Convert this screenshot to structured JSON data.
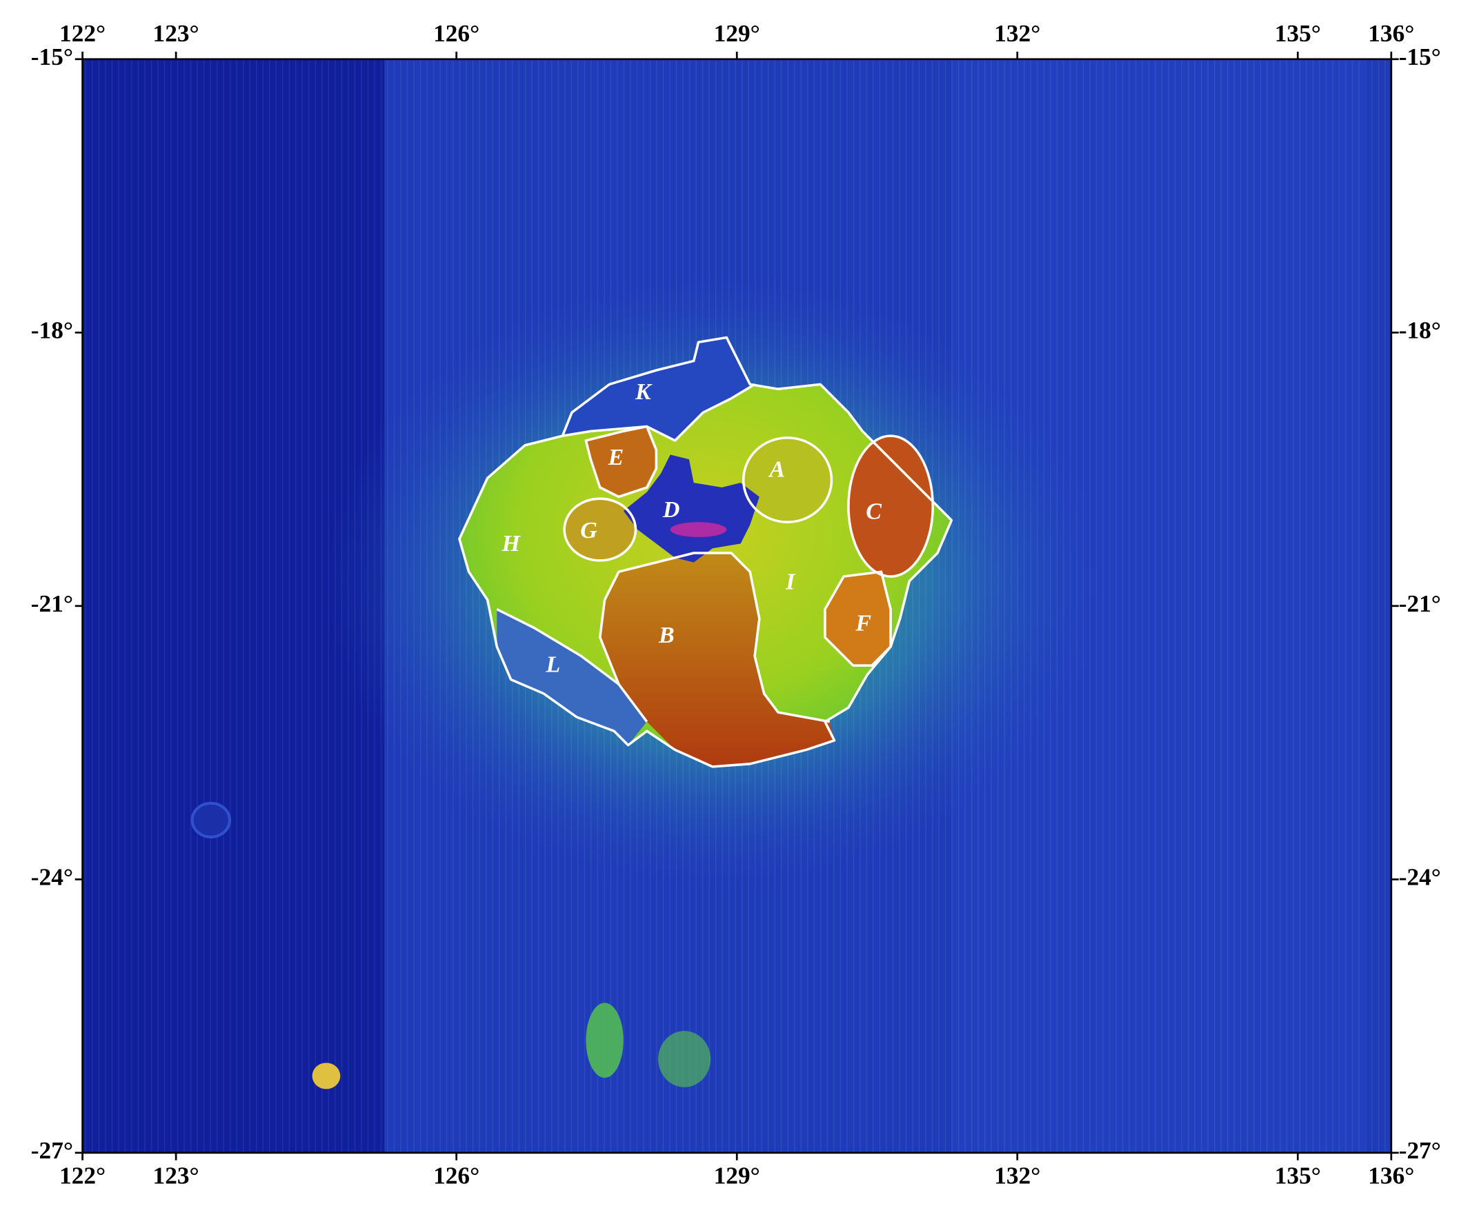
{
  "map": {
    "xlim": [
      122,
      136
    ],
    "ylim": [
      -27,
      -15
    ],
    "xticks": [
      {
        "value": 122,
        "label": "122°"
      },
      {
        "value": 123,
        "label": "123°"
      },
      {
        "value": 126,
        "label": "126°"
      },
      {
        "value": 129,
        "label": "129°"
      },
      {
        "value": 132,
        "label": "132°"
      },
      {
        "value": 135,
        "label": "135°"
      },
      {
        "value": 136,
        "label": "136°"
      }
    ],
    "yticks": [
      {
        "value": -15,
        "label": "-15°"
      },
      {
        "value": -18,
        "label": "-18°"
      },
      {
        "value": -21,
        "label": "-21°"
      },
      {
        "value": -24,
        "label": "-24°"
      },
      {
        "value": -27,
        "label": "-27°"
      }
    ],
    "regions": [
      "A",
      "B",
      "C",
      "D",
      "E",
      "F",
      "G",
      "H",
      "I",
      "K",
      "L"
    ]
  }
}
